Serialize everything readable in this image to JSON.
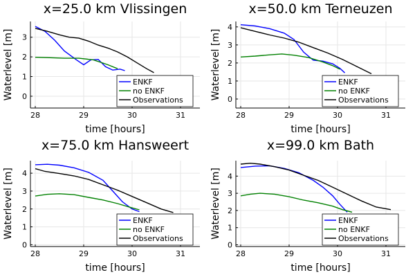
{
  "chart_data": [
    {
      "type": "line",
      "title": "x=25.0 km Vlissingen",
      "xlabel": "time [hours]",
      "ylabel": "Waterlevel [m]",
      "xlim": [
        27.9,
        31.4
      ],
      "ylim": [
        -0.6,
        3.8
      ],
      "xticks": [
        28,
        29,
        30,
        31
      ],
      "yticks": [
        0,
        1,
        2,
        3
      ],
      "grid": true,
      "legend": "bottom-right",
      "series": [
        {
          "name": "ENKF",
          "color": "#0000ff",
          "x": [
            28.0,
            28.2,
            28.4,
            28.6,
            28.85,
            29.0,
            29.15,
            29.3,
            29.45,
            29.6,
            29.75,
            29.85
          ],
          "y": [
            3.55,
            3.3,
            2.85,
            2.3,
            1.85,
            1.6,
            1.85,
            1.87,
            1.5,
            1.33,
            1.38,
            1.3
          ]
        },
        {
          "name": "no ENKF",
          "color": "#008000",
          "x": [
            28.0,
            28.3,
            28.6,
            28.9,
            29.2,
            29.5,
            29.7
          ],
          "y": [
            1.98,
            1.96,
            1.93,
            1.93,
            1.85,
            1.6,
            1.4
          ]
        },
        {
          "name": "Observations",
          "color": "#000000",
          "x": [
            28.0,
            28.25,
            28.5,
            28.7,
            28.9,
            29.1,
            29.3,
            29.5,
            29.7,
            29.9,
            30.1,
            30.3,
            30.45
          ],
          "y": [
            3.45,
            3.3,
            3.12,
            3.0,
            2.95,
            2.8,
            2.6,
            2.45,
            2.25,
            2.0,
            1.7,
            1.4,
            1.2
          ]
        }
      ]
    },
    {
      "type": "line",
      "title": "x=50.0 km Terneuzen",
      "xlabel": "time [hours]",
      "ylabel": "Waterlevel [m]",
      "xlim": [
        27.9,
        31.4
      ],
      "ylim": [
        -0.5,
        4.3
      ],
      "xticks": [
        28,
        29,
        30,
        31
      ],
      "yticks": [
        0,
        1,
        2,
        3,
        4
      ],
      "grid": true,
      "legend": "bottom-right",
      "series": [
        {
          "name": "ENKF",
          "color": "#0000ff",
          "x": [
            28.0,
            28.3,
            28.6,
            28.9,
            29.1,
            29.3,
            29.5,
            29.7,
            29.9,
            30.05,
            30.15
          ],
          "y": [
            4.12,
            4.05,
            3.9,
            3.65,
            3.3,
            2.6,
            2.15,
            2.1,
            1.95,
            1.7,
            1.45
          ]
        },
        {
          "name": "no ENKF",
          "color": "#008000",
          "x": [
            28.0,
            28.3,
            28.6,
            28.85,
            29.1,
            29.4,
            29.7,
            29.9,
            30.05
          ],
          "y": [
            2.33,
            2.38,
            2.45,
            2.5,
            2.43,
            2.3,
            2.05,
            1.85,
            1.65
          ]
        },
        {
          "name": "Observations",
          "color": "#000000",
          "x": [
            28.0,
            28.3,
            28.6,
            28.9,
            29.2,
            29.5,
            29.8,
            30.1,
            30.4,
            30.7
          ],
          "y": [
            3.95,
            3.75,
            3.55,
            3.38,
            3.15,
            2.85,
            2.55,
            2.2,
            1.8,
            1.4
          ]
        }
      ]
    },
    {
      "type": "line",
      "title": "x=75.0 km Hansweert",
      "xlabel": "time [hours]",
      "ylabel": "Waterlevel [m]",
      "xlim": [
        27.9,
        31.4
      ],
      "ylim": [
        -0.1,
        4.7
      ],
      "xticks": [
        28,
        29,
        30,
        31
      ],
      "yticks": [
        0,
        1,
        2,
        3,
        4
      ],
      "grid": true,
      "legend": "bottom-right",
      "series": [
        {
          "name": "ENKF",
          "color": "#0000ff",
          "x": [
            28.0,
            28.25,
            28.5,
            28.8,
            29.1,
            29.4,
            29.6,
            29.8,
            30.0,
            30.15
          ],
          "y": [
            4.47,
            4.5,
            4.45,
            4.3,
            4.05,
            3.6,
            3.0,
            2.4,
            2.0,
            1.85
          ]
        },
        {
          "name": "no ENKF",
          "color": "#008000",
          "x": [
            28.0,
            28.25,
            28.5,
            28.8,
            29.1,
            29.4,
            29.7,
            29.95,
            30.15
          ],
          "y": [
            2.72,
            2.82,
            2.85,
            2.8,
            2.65,
            2.5,
            2.3,
            2.1,
            1.95
          ]
        },
        {
          "name": "Observations",
          "color": "#000000",
          "x": [
            28.0,
            28.2,
            28.5,
            28.8,
            29.1,
            29.4,
            29.7,
            30.0,
            30.3,
            30.6,
            30.85
          ],
          "y": [
            4.25,
            4.1,
            3.98,
            3.85,
            3.65,
            3.35,
            3.05,
            2.7,
            2.35,
            2.0,
            1.8
          ]
        }
      ]
    },
    {
      "type": "line",
      "title": "x=99.0 km Bath",
      "xlabel": "time [hours]",
      "ylabel": "Waterlevel [m]",
      "xlim": [
        27.9,
        31.4
      ],
      "ylim": [
        -0.1,
        4.9
      ],
      "xticks": [
        28,
        29,
        30,
        31
      ],
      "yticks": [
        0,
        1,
        2,
        3,
        4
      ],
      "grid": true,
      "legend": "bottom-right",
      "series": [
        {
          "name": "ENKF",
          "color": "#0000ff",
          "x": [
            28.0,
            28.3,
            28.6,
            28.9,
            29.2,
            29.5,
            29.7,
            29.9,
            30.05,
            30.2
          ],
          "y": [
            4.5,
            4.58,
            4.6,
            4.45,
            4.2,
            3.75,
            3.35,
            2.85,
            2.35,
            1.9
          ]
        },
        {
          "name": "no ENKF",
          "color": "#008000",
          "x": [
            28.0,
            28.2,
            28.4,
            28.7,
            29.0,
            29.3,
            29.6,
            29.9,
            30.1,
            30.3
          ],
          "y": [
            2.85,
            2.95,
            3.0,
            2.95,
            2.8,
            2.6,
            2.45,
            2.25,
            2.05,
            1.9
          ]
        },
        {
          "name": "Observations",
          "color": "#000000",
          "x": [
            28.0,
            28.2,
            28.4,
            28.7,
            29.0,
            29.3,
            29.6,
            29.9,
            30.2,
            30.5,
            30.8,
            31.1
          ],
          "y": [
            4.7,
            4.75,
            4.7,
            4.55,
            4.35,
            4.05,
            3.75,
            3.35,
            2.95,
            2.55,
            2.2,
            2.05
          ]
        }
      ]
    }
  ]
}
